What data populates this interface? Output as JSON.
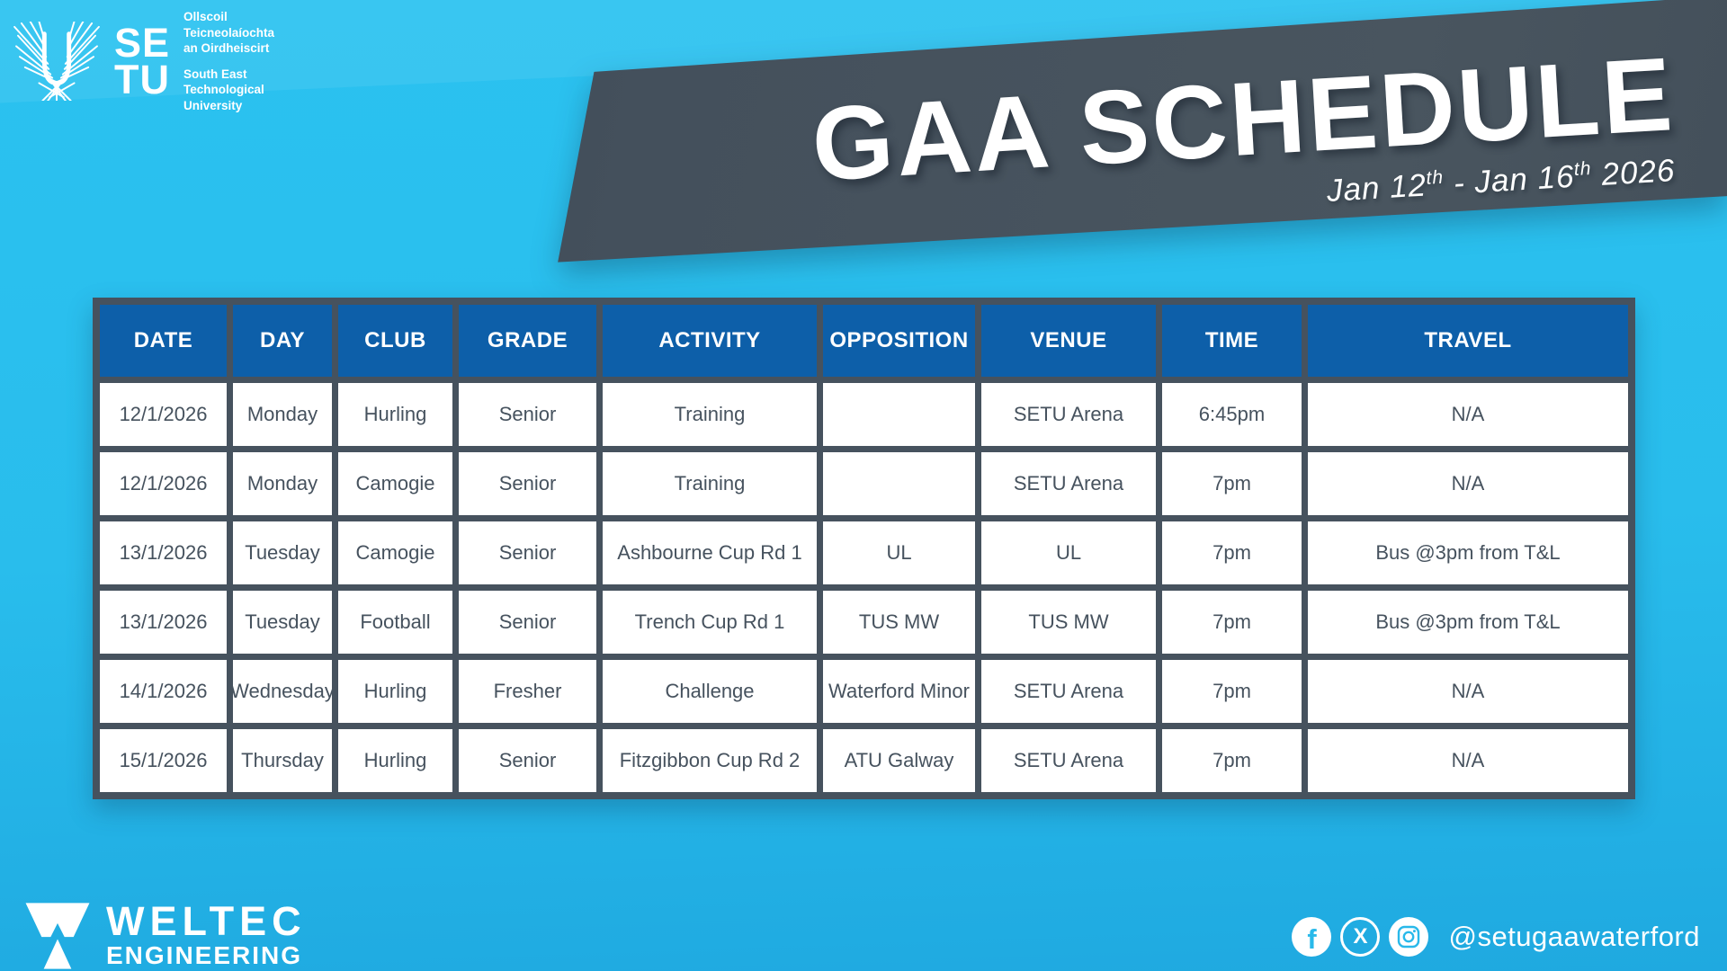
{
  "setu_logo": {
    "wordmark_line1": "SE",
    "wordmark_line2": "TU",
    "irish_lines": [
      "Ollscoil",
      "Teicneolaíochta",
      "an Oirdheiscirt"
    ],
    "english_lines": [
      "South East",
      "Technological",
      "University"
    ]
  },
  "banner": {
    "title": "GAA SCHEDULE",
    "date": {
      "part1": "Jan 12",
      "sup1": "th",
      "part2": " - Jan 16",
      "sup2": "th",
      "part3": " 2026"
    }
  },
  "table": {
    "columns": [
      "DATE",
      "DAY",
      "CLUB",
      "GRADE",
      "ACTIVITY",
      "OPPOSITION",
      "VENUE",
      "TIME",
      "TRAVEL"
    ],
    "rows": [
      [
        "12/1/2026",
        "Monday",
        "Hurling",
        "Senior",
        "Training",
        "",
        "SETU Arena",
        "6:45pm",
        "N/A"
      ],
      [
        "12/1/2026",
        "Monday",
        "Camogie",
        "Senior",
        "Training",
        "",
        "SETU Arena",
        "7pm",
        "N/A"
      ],
      [
        "13/1/2026",
        "Tuesday",
        "Camogie",
        "Senior",
        "Ashbourne Cup Rd 1",
        "UL",
        "UL",
        "7pm",
        "Bus @3pm from T&L"
      ],
      [
        "13/1/2026",
        "Tuesday",
        "Football",
        "Senior",
        "Trench Cup Rd 1",
        "TUS MW",
        "TUS MW",
        "7pm",
        "Bus @3pm from T&L"
      ],
      [
        "14/1/2026",
        "Wednesday",
        "Hurling",
        "Fresher",
        "Challenge",
        "Waterford Minor",
        "SETU Arena",
        "7pm",
        "N/A"
      ],
      [
        "15/1/2026",
        "Thursday",
        "Hurling",
        "Senior",
        "Fitzgibbon Cup Rd 2",
        "ATU Galway",
        "SETU Arena",
        "7pm",
        "N/A"
      ]
    ]
  },
  "footer": {
    "weltec_line1": "WELTEC",
    "weltec_line2": "ENGINEERING",
    "social_icons": [
      "facebook",
      "x",
      "instagram"
    ],
    "handle": "@setugaawaterford"
  },
  "colors": {
    "background_cyan": "#29bdec",
    "banner_slate": "#46525e",
    "header_blue": "#0d5fa9",
    "cell_text": "#46525e",
    "white": "#ffffff"
  }
}
